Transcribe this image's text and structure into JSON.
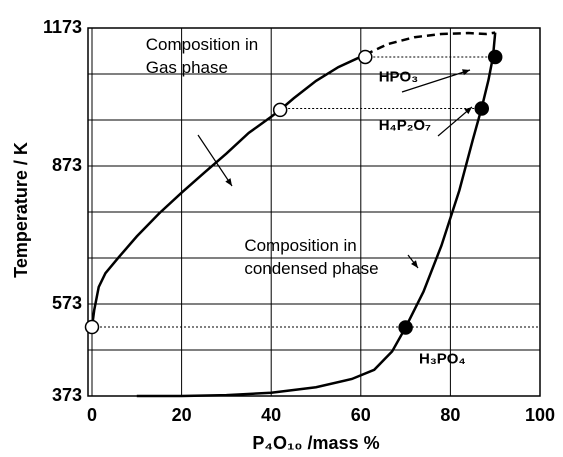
{
  "chart_data": {
    "type": "line",
    "x_label": "P₄O₁₀ /mass %",
    "y_label": "Temperature / K",
    "xlim": [
      0,
      100
    ],
    "xticks": [
      0,
      20,
      40,
      60,
      80,
      100
    ],
    "ylim": [
      373,
      1173
    ],
    "yticks": [
      373,
      573,
      873,
      1173
    ],
    "yminor": [
      473,
      673,
      773,
      973,
      1073
    ],
    "grid": true,
    "color": "#000000",
    "series": [
      {
        "x": [
          0,
          0.5,
          1.5,
          3,
          6,
          10,
          15,
          20,
          25,
          30,
          35,
          40,
          42,
          45,
          50,
          55,
          61
        ],
        "values": [
          523,
          560,
          610,
          640,
          675,
          720,
          770,
          815,
          858,
          900,
          945,
          980,
          995,
          1020,
          1058,
          1088,
          1115
        ],
        "dashed": false
      },
      {
        "x": [
          61,
          66,
          72,
          78,
          84,
          88,
          90
        ],
        "values": [
          1115,
          1138,
          1153,
          1160,
          1162,
          1160,
          1163
        ],
        "dashed": true
      },
      {
        "x": [
          10,
          20,
          30,
          40,
          50,
          58,
          63,
          67,
          70,
          74,
          78,
          82,
          85,
          87,
          88.5,
          89.5,
          90
        ],
        "values": [
          373,
          373,
          375,
          380,
          392,
          410,
          430,
          470,
          522,
          600,
          700,
          820,
          930,
          1000,
          1060,
          1110,
          1163
        ],
        "dashed": false
      }
    ],
    "points": [
      {
        "x": 0,
        "y": 523,
        "filled": false
      },
      {
        "x": 42,
        "y": 995,
        "filled": false
      },
      {
        "x": 61,
        "y": 1110,
        "filled": false
      },
      {
        "x": 70,
        "y": 522,
        "filled": true
      },
      {
        "x": 87,
        "y": 998,
        "filled": true
      },
      {
        "x": 90,
        "y": 1110,
        "filled": true
      }
    ],
    "tie_lines": [
      {
        "x": [
          0,
          100
        ],
        "y": 523
      },
      {
        "x": [
          42,
          87
        ],
        "y": 998
      },
      {
        "x": [
          61,
          90
        ],
        "y": 1110
      }
    ],
    "annotations": [
      {
        "text": "Composition in",
        "x": 12,
        "y": 1135
      },
      {
        "text": "Gas phase",
        "x": 12,
        "y": 1085
      },
      {
        "text": "Composition in",
        "x": 34,
        "y": 698
      },
      {
        "text": "condensed phase",
        "x": 34,
        "y": 648
      },
      {
        "text": "HPO₃",
        "x": 64,
        "y": 1065
      },
      {
        "text": "H₄P₂O₇",
        "x": 64,
        "y": 960
      },
      {
        "text": "H₃PO₄",
        "x": 73,
        "y": 452
      }
    ]
  }
}
